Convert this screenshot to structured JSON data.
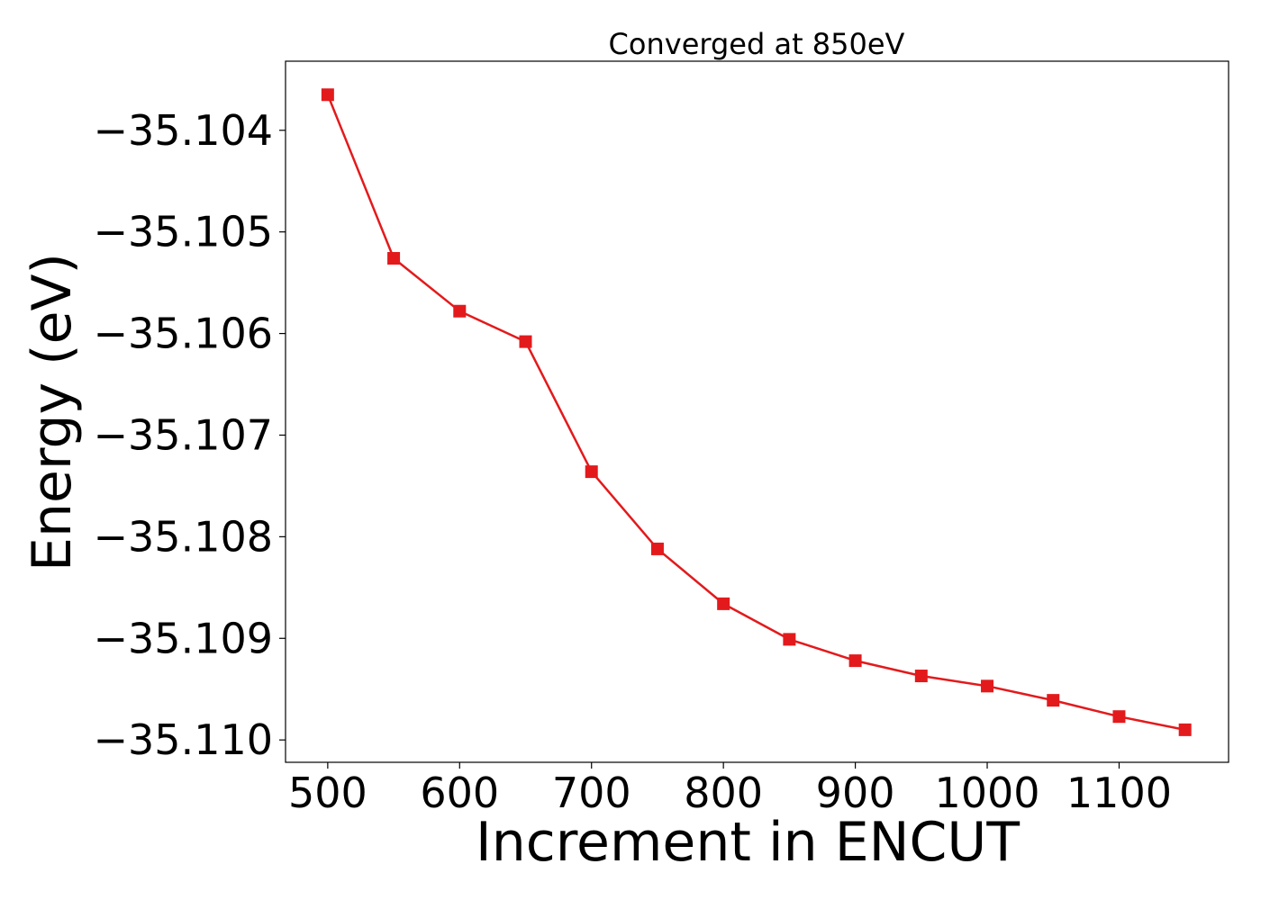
{
  "chart_data": {
    "type": "line",
    "title": "Converged at 850eV",
    "xlabel": "Increment in ENCUT",
    "ylabel": "Energy (eV)",
    "xlim": [
      468,
      1183
    ],
    "ylim": [
      -35.11022,
      -35.10332
    ],
    "x_ticks": [
      500,
      600,
      700,
      800,
      900,
      1000,
      1100
    ],
    "x_tick_labels": [
      "500",
      "600",
      "700",
      "800",
      "900",
      "1000",
      "1100"
    ],
    "y_ticks": [
      -35.104,
      -35.105,
      -35.106,
      -35.107,
      -35.108,
      -35.109,
      -35.11
    ],
    "y_tick_labels": [
      "−35.104",
      "−35.105",
      "−35.106",
      "−35.107",
      "−35.108",
      "−35.109",
      "−35.110"
    ],
    "grid": false,
    "series": [
      {
        "color": "#e31a1c",
        "marker": "square",
        "x": [
          500,
          550,
          600,
          650,
          700,
          750,
          800,
          850,
          900,
          950,
          1000,
          1050,
          1100,
          1150
        ],
        "y": [
          -35.10365,
          -35.10526,
          -35.10578,
          -35.10608,
          -35.10736,
          -35.10812,
          -35.10866,
          -35.10901,
          -35.10922,
          -35.10937,
          -35.10947,
          -35.10961,
          -35.10977,
          -35.1099
        ]
      }
    ]
  }
}
